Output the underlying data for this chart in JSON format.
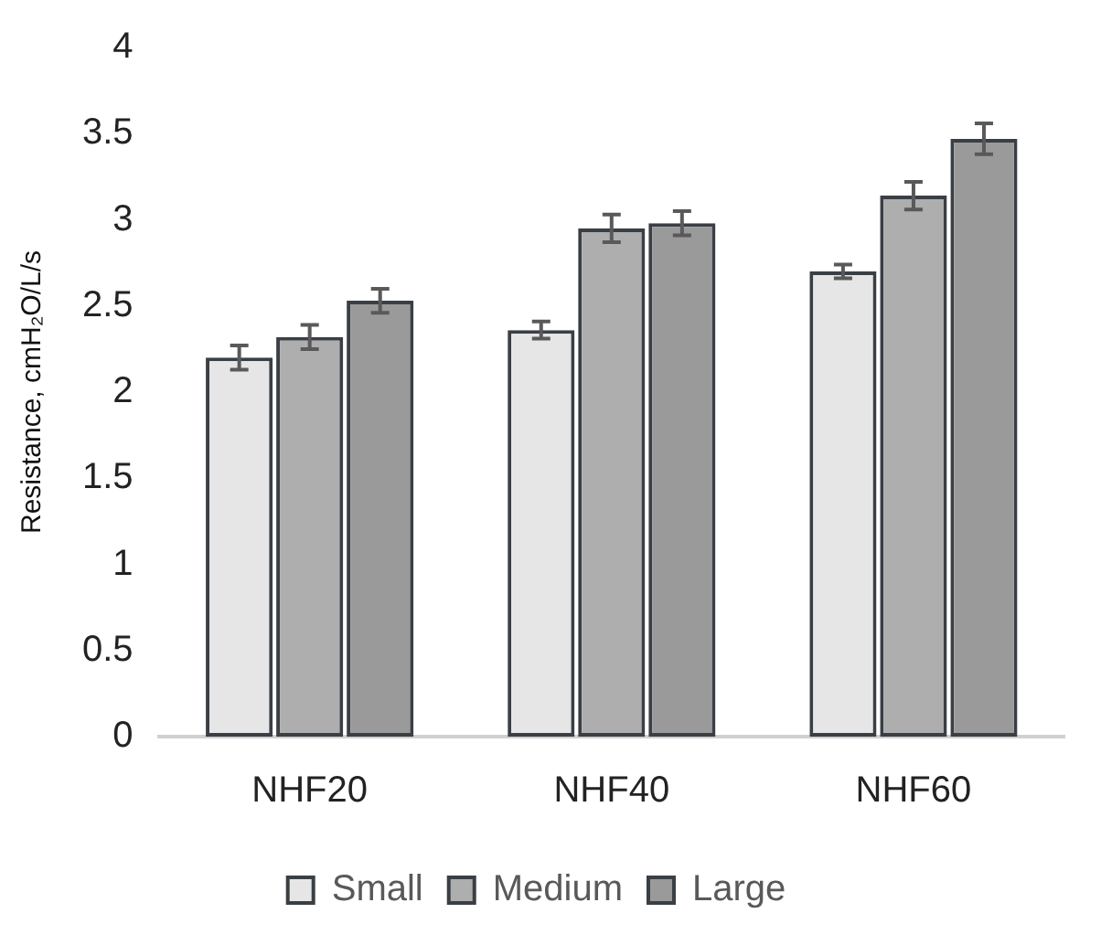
{
  "chart_data": {
    "type": "bar",
    "ylabel": "Resistance, cmH₂O/L/s",
    "categories": [
      "NHF20",
      "NHF40",
      "NHF60"
    ],
    "series": [
      {
        "name": "Small",
        "color": "#e6e6e6",
        "values": [
          2.2,
          2.36,
          2.7
        ],
        "errors": [
          0.07,
          0.05,
          0.04
        ]
      },
      {
        "name": "Medium",
        "color": "#aeaeae",
        "values": [
          2.32,
          2.95,
          3.14
        ],
        "errors": [
          0.07,
          0.08,
          0.08
        ]
      },
      {
        "name": "Large",
        "color": "#9a9a9a",
        "values": [
          2.53,
          2.98,
          3.47
        ],
        "errors": [
          0.07,
          0.07,
          0.09
        ]
      }
    ],
    "ylim": [
      0,
      4
    ],
    "yticks": [
      0,
      0.5,
      1,
      1.5,
      2,
      2.5,
      3,
      3.5,
      4
    ],
    "grid": false,
    "legend": "bottom"
  }
}
